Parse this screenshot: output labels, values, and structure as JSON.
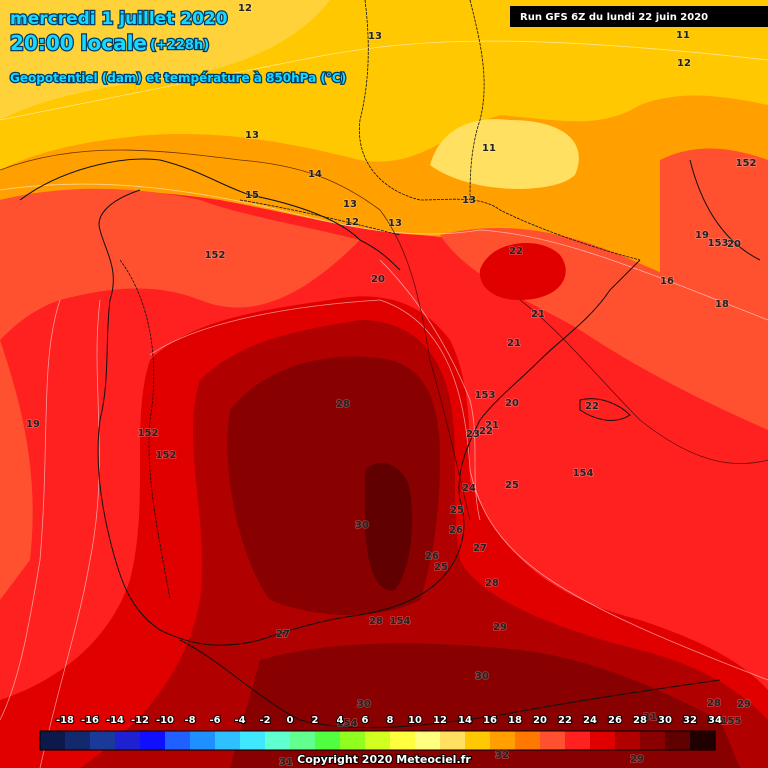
{
  "header": {
    "date": "mercredi 1 juillet 2020",
    "time": "20:00 locale",
    "lead": "(+228h)",
    "subtitle": "Geopotentiel (dam) et température à 850hPa (°C)",
    "run": "Run GFS 6Z du lundi 22 juin 2020"
  },
  "legend": {
    "labels": [
      "-18",
      "-16",
      "-14",
      "-12",
      "-10",
      "-8",
      "-6",
      "-4",
      "-2",
      "0",
      "2",
      "4",
      "6",
      "8",
      "10",
      "12",
      "14",
      "16",
      "18",
      "20",
      "22",
      "24",
      "26",
      "28",
      "30",
      "32",
      "34"
    ],
    "colors": [
      "#0b1a4a",
      "#13296e",
      "#1a3a9a",
      "#1f20d0",
      "#1010ff",
      "#2060ff",
      "#1e90ff",
      "#2ec0ff",
      "#40e8ff",
      "#60ffd0",
      "#60ff90",
      "#50ff40",
      "#90ff20",
      "#d0ff20",
      "#ffff40",
      "#ffff80",
      "#ffe060",
      "#ffc800",
      "#ffa000",
      "#ff7800",
      "#ff5030",
      "#ff2020",
      "#e00000",
      "#b00000",
      "#880000",
      "#600000",
      "#200000"
    ]
  },
  "map_labels": [
    "12",
    "13",
    "11",
    "12",
    "13",
    "11",
    "152",
    "14",
    "15",
    "13",
    "13",
    "12",
    "13",
    "19",
    "153",
    "20",
    "152",
    "22",
    "16",
    "18",
    "20",
    "21",
    "21",
    "28",
    "153",
    "20",
    "22",
    "19",
    "152",
    "21",
    "23",
    "22",
    "152",
    "154",
    "24",
    "25",
    "25",
    "30",
    "26",
    "27",
    "26",
    "25",
    "28",
    "28",
    "154",
    "29",
    "27",
    "30",
    "30",
    "154",
    "28",
    "29",
    "31",
    "155",
    "32",
    "29",
    "31"
  ],
  "copyright": "Copyright 2020 Meteociel.fr"
}
